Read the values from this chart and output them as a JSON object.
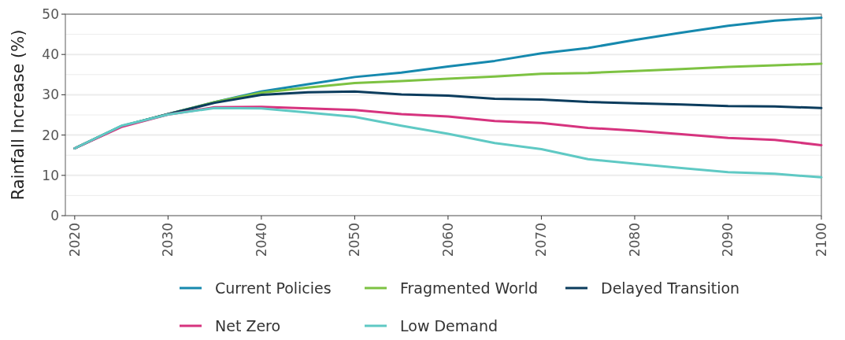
{
  "chart_data": {
    "type": "line",
    "ylabel": "Rainfall Increase (%)",
    "x": [
      2020,
      2025,
      2030,
      2035,
      2040,
      2045,
      2050,
      2055,
      2060,
      2065,
      2070,
      2075,
      2080,
      2085,
      2090,
      2095,
      2100
    ],
    "xlim": [
      2019,
      2100
    ],
    "xticks": [
      2020,
      2030,
      2040,
      2050,
      2060,
      2070,
      2080,
      2090,
      2100
    ],
    "ylim": [
      0,
      50
    ],
    "yticks": [
      0,
      {
        "value": 5,
        "label": null
      },
      10,
      {
        "value": 15,
        "label": null
      },
      20,
      {
        "value": 25,
        "label": null
      },
      30,
      {
        "value": 35,
        "label": null
      },
      40,
      {
        "value": 45,
        "label": null
      },
      50
    ],
    "grid": "y",
    "legend": "bottom",
    "marker": "none",
    "line_style": "solid",
    "series": [
      {
        "name": "Current Policies",
        "color": "#1689ae",
        "values": [
          16.7,
          22.2,
          25.2,
          28.2,
          30.8,
          32.6,
          34.4,
          35.5,
          37.0,
          38.4,
          40.3,
          41.6,
          43.6,
          45.4,
          47.1,
          48.4,
          49.1
        ]
      },
      {
        "name": "Fragmented World",
        "color": "#7dc242",
        "values": [
          16.7,
          22.2,
          25.2,
          28.2,
          30.5,
          31.8,
          32.9,
          33.4,
          34.0,
          34.5,
          35.2,
          35.4,
          35.9,
          36.4,
          36.9,
          37.3,
          37.7
        ]
      },
      {
        "name": "Delayed Transition",
        "color": "#0b3c5d",
        "values": [
          16.7,
          22.2,
          25.2,
          28.0,
          30.0,
          30.6,
          30.8,
          30.1,
          29.8,
          29.0,
          28.8,
          28.2,
          27.9,
          27.6,
          27.2,
          27.1,
          26.7
        ]
      },
      {
        "name": "Net Zero",
        "color": "#d6337e",
        "values": [
          16.7,
          22.0,
          25.1,
          26.9,
          27.0,
          26.6,
          26.2,
          25.2,
          24.6,
          23.5,
          23.0,
          21.8,
          21.1,
          20.2,
          19.3,
          18.8,
          17.5
        ]
      },
      {
        "name": "Low Demand",
        "color": "#5fc9c4",
        "values": [
          16.7,
          22.3,
          25.1,
          26.7,
          26.6,
          25.6,
          24.5,
          22.3,
          20.3,
          18.0,
          16.5,
          14.0,
          12.9,
          11.8,
          10.8,
          10.4,
          9.5
        ]
      }
    ]
  }
}
